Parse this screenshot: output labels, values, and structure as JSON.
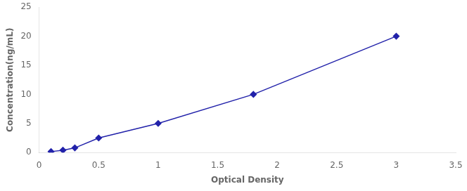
{
  "chart_data": {
    "type": "line",
    "xlabel": "Optical Density",
    "ylabel": "Concentration(ng/mL)",
    "x": [
      0.1,
      0.2,
      0.3,
      0.5,
      1.0,
      1.8,
      3.0
    ],
    "values": [
      0.16,
      0.4,
      0.8,
      2.5,
      5.0,
      10.0,
      20.0
    ],
    "color": "#2222aa",
    "marker": "diamond",
    "line_style": "solid",
    "xlim": [
      0,
      3.5
    ],
    "ylim": [
      0,
      25
    ],
    "xticks": [
      0,
      0.5,
      1,
      1.5,
      2,
      2.5,
      3,
      3.5
    ],
    "yticks": [
      0,
      5,
      10,
      15,
      20,
      25
    ],
    "grid": false
  }
}
